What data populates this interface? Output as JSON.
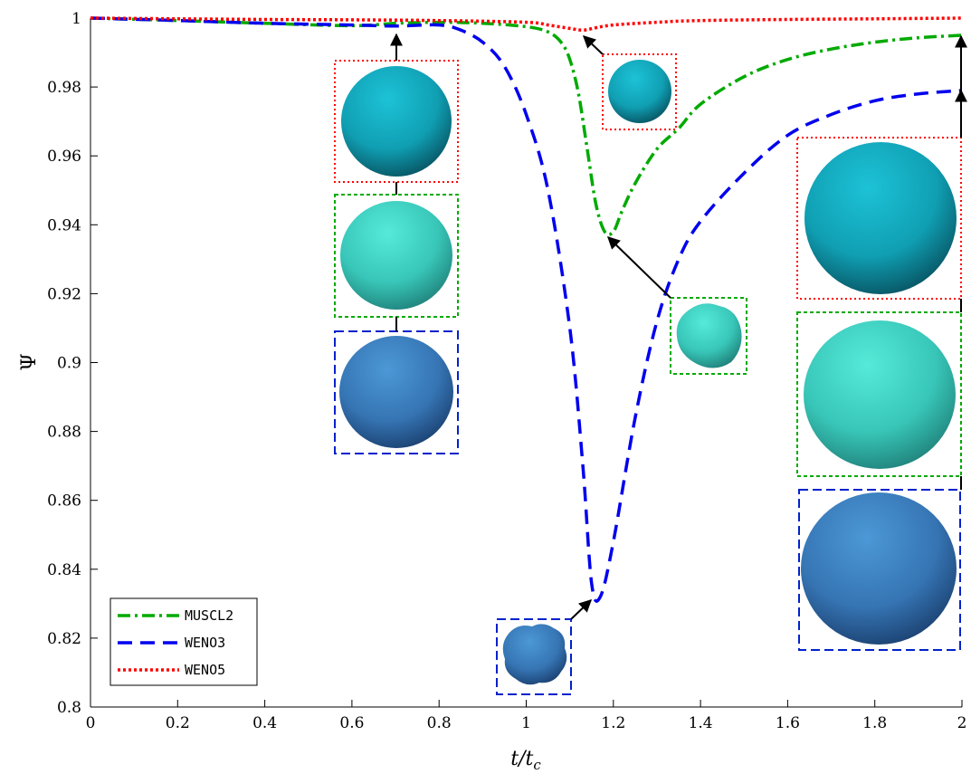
{
  "chart_data": {
    "type": "line",
    "xlabel": "t/t_c",
    "ylabel": "Ψ",
    "xlim": [
      0,
      2
    ],
    "ylim": [
      0.8,
      1.0
    ],
    "xticks": [
      "0",
      "0.2",
      "0.4",
      "0.6",
      "0.8",
      "1",
      "1.2",
      "1.4",
      "1.6",
      "1.8",
      "2"
    ],
    "yticks": [
      "0.8",
      "0.82",
      "0.84",
      "0.86",
      "0.88",
      "0.9",
      "0.92",
      "0.94",
      "0.96",
      "0.98",
      "1"
    ],
    "grid": false,
    "legend_position": "bottom-left",
    "series": [
      {
        "name": "MUSCL2",
        "color": "#00aa00",
        "dash": "dashdot",
        "x": [
          0,
          0.2,
          0.4,
          0.6,
          0.7,
          0.8,
          0.9,
          1.0,
          1.05,
          1.08,
          1.1,
          1.12,
          1.14,
          1.16,
          1.18,
          1.2,
          1.22,
          1.25,
          1.3,
          1.35,
          1.4,
          1.5,
          1.6,
          1.7,
          1.8,
          1.9,
          2.0
        ],
        "y": [
          1.0,
          0.9993,
          0.9985,
          0.9978,
          0.9985,
          0.9988,
          0.9985,
          0.9975,
          0.996,
          0.993,
          0.988,
          0.978,
          0.962,
          0.946,
          0.938,
          0.938,
          0.944,
          0.952,
          0.962,
          0.968,
          0.975,
          0.983,
          0.988,
          0.991,
          0.993,
          0.9943,
          0.995
        ]
      },
      {
        "name": "WENO3",
        "color": "#0000ee",
        "dash": "dash",
        "x": [
          0,
          0.2,
          0.4,
          0.6,
          0.7,
          0.8,
          0.85,
          0.9,
          0.95,
          1.0,
          1.05,
          1.1,
          1.13,
          1.15,
          1.17,
          1.2,
          1.25,
          1.3,
          1.35,
          1.4,
          1.5,
          1.6,
          1.7,
          1.8,
          1.9,
          2.0
        ],
        "y": [
          1.0,
          0.9993,
          0.9985,
          0.998,
          0.9977,
          0.998,
          0.9965,
          0.993,
          0.986,
          0.972,
          0.95,
          0.91,
          0.87,
          0.836,
          0.832,
          0.848,
          0.884,
          0.912,
          0.93,
          0.941,
          0.955,
          0.966,
          0.972,
          0.976,
          0.978,
          0.979
        ]
      },
      {
        "name": "WENO5",
        "color": "#ff0000",
        "dash": "dot",
        "x": [
          0,
          0.2,
          0.4,
          0.6,
          0.8,
          1.0,
          1.05,
          1.1,
          1.13,
          1.16,
          1.2,
          1.3,
          1.4,
          1.6,
          1.8,
          2.0
        ],
        "y": [
          1.0,
          0.9998,
          0.9996,
          0.9995,
          0.9993,
          0.9988,
          0.998,
          0.997,
          0.9965,
          0.9972,
          0.998,
          0.9988,
          0.9993,
          0.9996,
          0.9998,
          1.0
        ]
      }
    ]
  },
  "colors": {
    "box_weno5": "#ff0000",
    "box_muscl2": "#00aa00",
    "box_weno3": "#0000cc",
    "sphere_weno5": "#1a9cb0",
    "sphere_muscl2": "#3fcfc0",
    "sphere_weno3": "#3a7fc0"
  }
}
